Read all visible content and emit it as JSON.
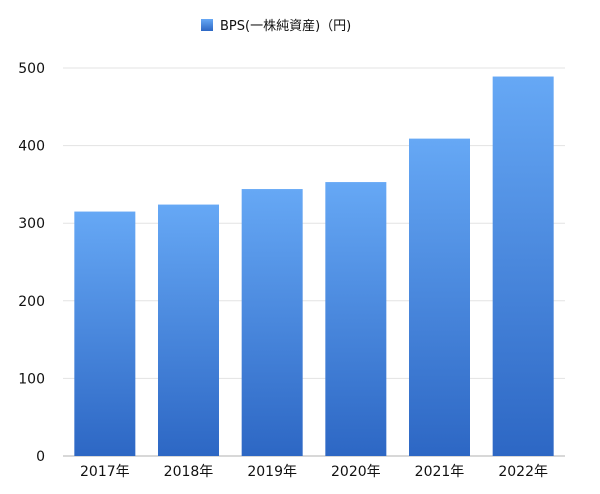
{
  "chart_data": {
    "type": "bar",
    "categories": [
      "2017年",
      "2018年",
      "2019年",
      "2020年",
      "2021年",
      "2022年"
    ],
    "series": [
      {
        "name": "BPS(一株純資産)（円)",
        "values": [
          315,
          324,
          344,
          353,
          409,
          489
        ]
      }
    ],
    "ylim": [
      0,
      500
    ],
    "yticks": [
      0,
      100,
      200,
      300,
      400,
      500
    ],
    "grid": true,
    "legend_position": "top-center",
    "colors": {
      "bar_top": "#66a8f5",
      "bar_bottom": "#2d67c4",
      "grid": "#e3e3e3",
      "axis": "#b0b0b0"
    }
  }
}
